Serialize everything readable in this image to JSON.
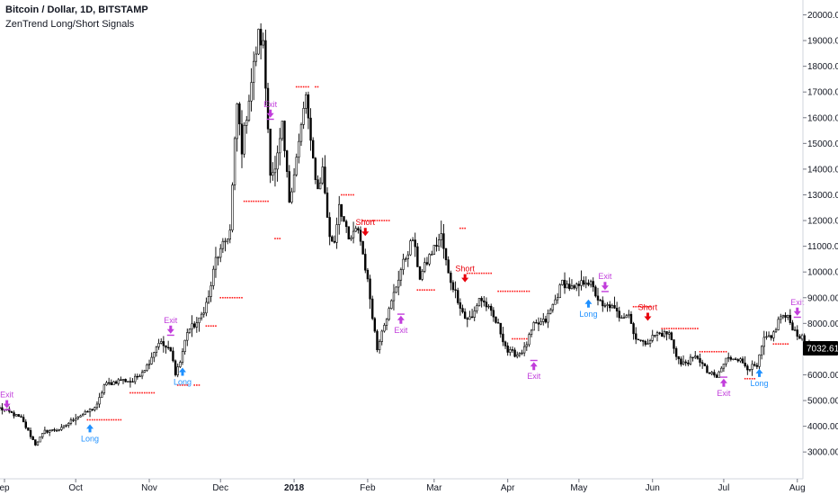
{
  "header": {
    "title": "Bitcoin / Dollar, 1D, BITSTAMP",
    "subtitle": "ZenTrend Long/Short Signals"
  },
  "colors": {
    "candle": "#000000",
    "stop_dots": "#ff1a1a",
    "long": "#1e90ff",
    "short": "#e8000b",
    "exit": "#c13ddb",
    "price_tag": "#000000"
  },
  "chart_data": {
    "type": "candlestick",
    "y_ticks": [
      "3000.00",
      "4000.00",
      "5000.00",
      "6000.00",
      "7000.00",
      "8000.00",
      "9000.00",
      "10000.00",
      "11000.00",
      "12000.00",
      "13000.00",
      "14000.00",
      "15000.00",
      "16000.00",
      "17000.00",
      "18000.00",
      "19000.00",
      "20000.00"
    ],
    "x_ticks": [
      {
        "label": "ep",
        "date": "2017-09-01",
        "bold": false
      },
      {
        "label": "Oct",
        "date": "2017-10-01",
        "bold": false
      },
      {
        "label": "Nov",
        "date": "2017-11-01",
        "bold": false
      },
      {
        "label": "Dec",
        "date": "2017-12-01",
        "bold": false
      },
      {
        "label": "2018",
        "date": "2018-01-01",
        "bold": true
      },
      {
        "label": "Feb",
        "date": "2018-02-01",
        "bold": false
      },
      {
        "label": "Mar",
        "date": "2018-03-01",
        "bold": false
      },
      {
        "label": "Apr",
        "date": "2018-04-01",
        "bold": false
      },
      {
        "label": "May",
        "date": "2018-05-01",
        "bold": false
      },
      {
        "label": "Jun",
        "date": "2018-06-01",
        "bold": false
      },
      {
        "label": "Jul",
        "date": "2018-07-01",
        "bold": false
      },
      {
        "label": "Aug",
        "date": "2018-08-01",
        "bold": false
      }
    ],
    "last_price": "7032.61",
    "price_path": [
      [
        "2017-08-30",
        4700
      ],
      [
        "2017-09-03",
        4550
      ],
      [
        "2017-09-08",
        4300
      ],
      [
        "2017-09-14",
        3300
      ],
      [
        "2017-09-18",
        3800
      ],
      [
        "2017-09-25",
        3900
      ],
      [
        "2017-10-01",
        4350
      ],
      [
        "2017-10-05",
        4500
      ],
      [
        "2017-10-10",
        4800
      ],
      [
        "2017-10-13",
        5600
      ],
      [
        "2017-10-20",
        5800
      ],
      [
        "2017-10-25",
        5750
      ],
      [
        "2017-10-31",
        6350
      ],
      [
        "2017-11-05",
        7300
      ],
      [
        "2017-11-10",
        6900
      ],
      [
        "2017-11-12",
        6100
      ],
      [
        "2017-11-14",
        6500
      ],
      [
        "2017-11-17",
        7700
      ],
      [
        "2017-11-22",
        8100
      ],
      [
        "2017-11-26",
        9000
      ],
      [
        "2017-11-29",
        10500
      ],
      [
        "2017-12-01",
        10800
      ],
      [
        "2017-12-05",
        11600
      ],
      [
        "2017-12-07",
        15000
      ],
      [
        "2017-12-08",
        16500
      ],
      [
        "2017-12-10",
        14800
      ],
      [
        "2017-12-13",
        16800
      ],
      [
        "2017-12-17",
        19200
      ],
      [
        "2017-12-19",
        18800
      ],
      [
        "2017-12-22",
        14000
      ],
      [
        "2017-12-24",
        13900
      ],
      [
        "2017-12-27",
        15600
      ],
      [
        "2017-12-30",
        12800
      ],
      [
        "2018-01-03",
        15000
      ],
      [
        "2018-01-06",
        16900
      ],
      [
        "2018-01-08",
        14900
      ],
      [
        "2018-01-11",
        13200
      ],
      [
        "2018-01-13",
        14000
      ],
      [
        "2018-01-16",
        11300
      ],
      [
        "2018-01-18",
        11200
      ],
      [
        "2018-01-20",
        12700
      ],
      [
        "2018-01-24",
        11200
      ],
      [
        "2018-01-28",
        11700
      ],
      [
        "2018-01-31",
        10200
      ],
      [
        "2018-02-02",
        9000
      ],
      [
        "2018-02-05",
        7000
      ],
      [
        "2018-02-07",
        7800
      ],
      [
        "2018-02-10",
        8500
      ],
      [
        "2018-02-15",
        10100
      ],
      [
        "2018-02-20",
        11300
      ],
      [
        "2018-02-23",
        9800
      ],
      [
        "2018-02-27",
        10600
      ],
      [
        "2018-03-04",
        11400
      ],
      [
        "2018-03-07",
        9900
      ],
      [
        "2018-03-10",
        9200
      ],
      [
        "2018-03-14",
        8200
      ],
      [
        "2018-03-17",
        8200
      ],
      [
        "2018-03-20",
        9000
      ],
      [
        "2018-03-23",
        8700
      ],
      [
        "2018-03-28",
        7900
      ],
      [
        "2018-04-01",
        6900
      ],
      [
        "2018-04-05",
        6800
      ],
      [
        "2018-04-08",
        7000
      ],
      [
        "2018-04-12",
        7900
      ],
      [
        "2018-04-17",
        8100
      ],
      [
        "2018-04-21",
        8900
      ],
      [
        "2018-04-24",
        9600
      ],
      [
        "2018-04-29",
        9300
      ],
      [
        "2018-05-04",
        9700
      ],
      [
        "2018-05-06",
        9500
      ],
      [
        "2018-05-11",
        8600
      ],
      [
        "2018-05-14",
        8700
      ],
      [
        "2018-05-18",
        8300
      ],
      [
        "2018-05-22",
        8400
      ],
      [
        "2018-05-24",
        7600
      ],
      [
        "2018-05-28",
        7200
      ],
      [
        "2018-06-03",
        7600
      ],
      [
        "2018-06-08",
        7600
      ],
      [
        "2018-06-11",
        6800
      ],
      [
        "2018-06-13",
        6400
      ],
      [
        "2018-06-20",
        6700
      ],
      [
        "2018-06-24",
        6100
      ],
      [
        "2018-06-28",
        5900
      ],
      [
        "2018-07-02",
        6600
      ],
      [
        "2018-07-06",
        6700
      ],
      [
        "2018-07-11",
        6300
      ],
      [
        "2018-07-15",
        6300
      ],
      [
        "2018-07-18",
        7400
      ],
      [
        "2018-07-21",
        7400
      ],
      [
        "2018-07-25",
        8300
      ],
      [
        "2018-07-28",
        8200
      ],
      [
        "2018-07-31",
        7700
      ],
      [
        "2018-08-03",
        7400
      ],
      [
        "2018-08-06",
        7032
      ]
    ],
    "stop_segments": [
      {
        "start": "2017-10-06",
        "end": "2017-10-20",
        "value": 4250
      },
      {
        "start": "2017-10-24",
        "end": "2017-11-03",
        "value": 5300
      },
      {
        "start": "2017-11-13",
        "end": "2017-11-17",
        "value": 5600
      },
      {
        "start": "2017-11-20",
        "end": "2017-11-22",
        "value": 5600
      },
      {
        "start": "2017-11-25",
        "end": "2017-11-29",
        "value": 7900
      },
      {
        "start": "2017-12-01",
        "end": "2017-12-10",
        "value": 9000
      },
      {
        "start": "2017-12-11",
        "end": "2017-12-21",
        "value": 12750
      },
      {
        "start": "2017-12-24",
        "end": "2017-12-26",
        "value": 11300
      },
      {
        "start": "2018-01-02",
        "end": "2018-01-07",
        "value": 17200
      },
      {
        "start": "2018-01-10",
        "end": "2018-01-11",
        "value": 17200
      },
      {
        "start": "2018-01-21",
        "end": "2018-01-26",
        "value": 13000
      },
      {
        "start": "2018-01-30",
        "end": "2018-02-10",
        "value": 12000
      },
      {
        "start": "2018-02-22",
        "end": "2018-03-01",
        "value": 9300
      },
      {
        "start": "2018-03-12",
        "end": "2018-03-14",
        "value": 11700
      },
      {
        "start": "2018-03-15",
        "end": "2018-03-25",
        "value": 9950
      },
      {
        "start": "2018-03-28",
        "end": "2018-04-10",
        "value": 9250
      },
      {
        "start": "2018-04-03",
        "end": "2018-04-09",
        "value": 7400
      },
      {
        "start": "2018-05-24",
        "end": "2018-05-31",
        "value": 8650
      },
      {
        "start": "2018-06-05",
        "end": "2018-06-20",
        "value": 7800
      },
      {
        "start": "2018-06-21",
        "end": "2018-07-02",
        "value": 6900
      },
      {
        "start": "2018-07-22",
        "end": "2018-07-28",
        "value": 7200
      },
      {
        "start": "2018-07-10",
        "end": "2018-07-14",
        "value": 5850
      }
    ],
    "signals": [
      {
        "type": "Exit",
        "date": "2017-09-02",
        "price": 4700,
        "side": "above"
      },
      {
        "type": "Long",
        "date": "2017-10-07",
        "price": 4150,
        "side": "below"
      },
      {
        "type": "Exit",
        "date": "2017-11-10",
        "price": 7600,
        "side": "above"
      },
      {
        "type": "Long",
        "date": "2017-11-15",
        "price": 6350,
        "side": "below"
      },
      {
        "type": "Exit",
        "date": "2017-12-22",
        "price": 16000,
        "side": "above"
      },
      {
        "type": "Short",
        "date": "2018-01-31",
        "price": 11400,
        "side": "above"
      },
      {
        "type": "Exit",
        "date": "2018-02-15",
        "price": 8300,
        "side": "below"
      },
      {
        "type": "Short",
        "date": "2018-03-14",
        "price": 9600,
        "side": "above"
      },
      {
        "type": "Exit",
        "date": "2018-04-12",
        "price": 6500,
        "side": "below"
      },
      {
        "type": "Long",
        "date": "2018-05-05",
        "price": 9000,
        "side": "below"
      },
      {
        "type": "Exit",
        "date": "2018-05-12",
        "price": 9300,
        "side": "above"
      },
      {
        "type": "Short",
        "date": "2018-05-30",
        "price": 8100,
        "side": "above"
      },
      {
        "type": "Exit",
        "date": "2018-07-01",
        "price": 5850,
        "side": "below"
      },
      {
        "type": "Long",
        "date": "2018-07-16",
        "price": 6300,
        "side": "below"
      },
      {
        "type": "Exit",
        "date": "2018-08-01",
        "price": 8300,
        "side": "above"
      }
    ]
  }
}
